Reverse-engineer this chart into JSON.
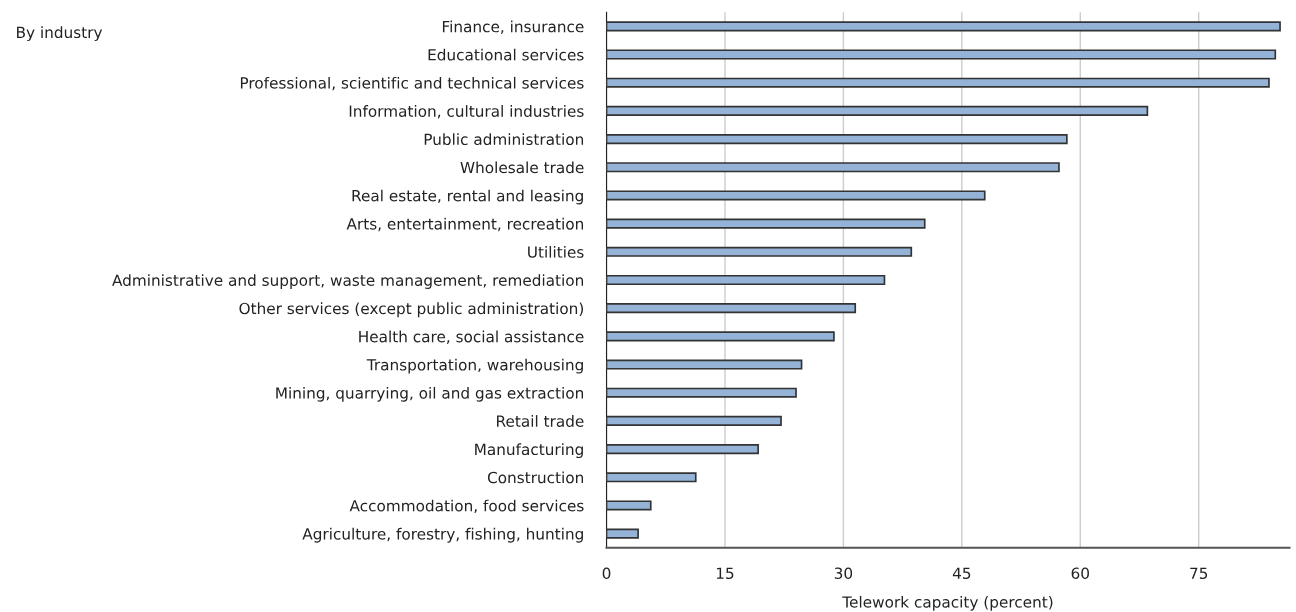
{
  "chart_data": {
    "type": "bar",
    "orientation": "horizontal",
    "ylabel": "By industry",
    "xlabel": "Telework capacity (percent)",
    "categories": [
      "Finance, insurance",
      "Educational services",
      "Professional, scientific and technical services",
      "Information, cultural industries",
      "Public administration",
      "Wholesale trade",
      "Real estate, rental and leasing",
      "Arts, entertainment, recreation",
      "Utilities",
      "Administrative and support, waste management, remediation",
      "Other services (except public administration)",
      "Health care, social assistance",
      "Transportation, warehousing",
      "Mining, quarrying, oil and gas extraction",
      "Retail trade",
      "Manufacturing",
      "Construction",
      "Accommodation, food services",
      "Agriculture, forestry, fishing, hunting"
    ],
    "values": [
      85.3,
      84.7,
      83.9,
      68.5,
      58.3,
      57.3,
      47.9,
      40.3,
      38.6,
      35.2,
      31.5,
      28.8,
      24.7,
      24.0,
      22.1,
      19.2,
      11.3,
      5.6,
      4.0
    ],
    "color": "#95b3d7",
    "xlim": [
      0,
      86.5
    ],
    "xticks": [
      0,
      15,
      30,
      45,
      60,
      75
    ],
    "grid": "x",
    "legend": false
  }
}
